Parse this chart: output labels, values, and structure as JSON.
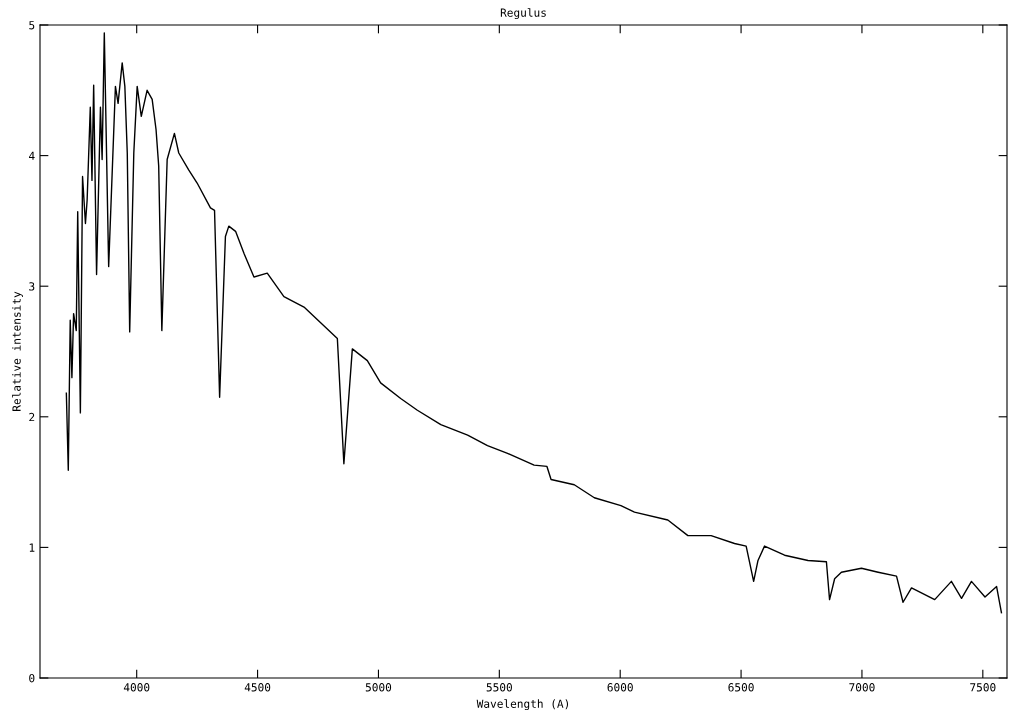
{
  "chart_data": {
    "type": "line",
    "title": "Regulus",
    "xlabel": "Wavelength (A)",
    "ylabel": "Relative intensity",
    "xlim": [
      3600,
      7600
    ],
    "xticks": [
      4000,
      4500,
      5000,
      5500,
      6000,
      6500,
      7000,
      7500
    ],
    "ylim": [
      0,
      5
    ],
    "yticks": [
      0,
      1,
      2,
      3,
      4,
      5
    ],
    "grid": false,
    "legend": false,
    "marker": "none",
    "line_style": "solid",
    "series": [
      {
        "color": "#000000",
        "x": [
          3709,
          3717,
          3725,
          3732,
          3739,
          3750,
          3756,
          3767,
          3776,
          3788,
          3795,
          3808,
          3815,
          3822,
          3834,
          3850,
          3857,
          3866,
          3884,
          3912,
          3923,
          3940,
          3951,
          3961,
          3971,
          3988,
          4002,
          4019,
          4043,
          4064,
          4080,
          4091,
          4104,
          4126,
          4156,
          4174,
          4215,
          4250,
          4305,
          4322,
          4343,
          4367,
          4381,
          4409,
          4444,
          4485,
          4540,
          4609,
          4692,
          4761,
          4830,
          4857,
          4892,
          4954,
          5009,
          5092,
          5161,
          5258,
          5369,
          5451,
          5534,
          5644,
          5697,
          5714,
          5810,
          5893,
          6003,
          6059,
          6197,
          6280,
          6376,
          6473,
          6521,
          6552,
          6570,
          6597,
          6680,
          6777,
          6853,
          6866,
          6887,
          6915,
          6998,
          7067,
          7143,
          7170,
          7205,
          7301,
          7370,
          7412,
          7453,
          7509,
          7557,
          7577
        ],
        "values": [
          2.18,
          1.59,
          2.74,
          2.3,
          2.79,
          2.66,
          3.57,
          2.03,
          3.84,
          3.48,
          3.66,
          4.37,
          3.81,
          4.54,
          3.09,
          4.37,
          3.97,
          4.94,
          3.15,
          4.53,
          4.4,
          4.71,
          4.53,
          4.02,
          2.65,
          4.02,
          4.53,
          4.3,
          4.5,
          4.43,
          4.2,
          3.92,
          2.66,
          3.97,
          4.17,
          4.02,
          3.89,
          3.79,
          3.6,
          3.58,
          2.15,
          3.38,
          3.46,
          3.42,
          3.25,
          3.07,
          3.1,
          2.92,
          2.84,
          2.72,
          2.6,
          1.64,
          2.52,
          2.43,
          2.26,
          2.14,
          2.05,
          1.94,
          1.86,
          1.78,
          1.72,
          1.63,
          1.62,
          1.52,
          1.48,
          1.38,
          1.32,
          1.27,
          1.21,
          1.09,
          1.09,
          1.03,
          1.01,
          0.74,
          0.9,
          1.01,
          0.94,
          0.9,
          0.89,
          0.6,
          0.76,
          0.81,
          0.84,
          0.81,
          0.78,
          0.58,
          0.69,
          0.6,
          0.74,
          0.61,
          0.74,
          0.62,
          0.7,
          0.5
        ]
      }
    ]
  }
}
